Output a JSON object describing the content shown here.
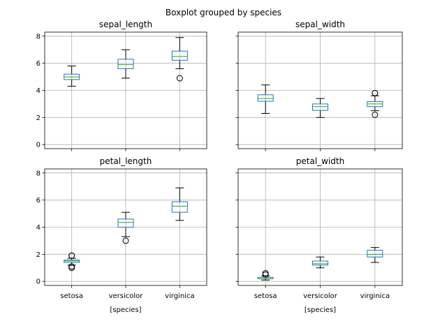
{
  "figure": {
    "suptitle": "Boxplot grouped by species"
  },
  "colors": {
    "box": "#1f77b4",
    "median": "#2ca02c",
    "whisker": "#000000",
    "grid": "#b0b0b0",
    "spine": "#000000"
  },
  "chart_data": [
    {
      "type": "box",
      "title": "sepal_length",
      "xlabel": "",
      "ylim": [
        -0.3,
        8.3
      ],
      "yticks": [
        0,
        2,
        4,
        6,
        8
      ],
      "grid": true,
      "categories": [
        "setosa",
        "versicolor",
        "virginica"
      ],
      "boxes": [
        {
          "whislo": 4.3,
          "q1": 4.8,
          "med": 5.0,
          "q3": 5.2,
          "whishi": 5.8,
          "fliers": []
        },
        {
          "whislo": 4.9,
          "q1": 5.6,
          "med": 5.9,
          "q3": 6.3,
          "whishi": 7.0,
          "fliers": []
        },
        {
          "whislo": 5.6,
          "q1": 6.225,
          "med": 6.5,
          "q3": 6.9,
          "whishi": 7.9,
          "fliers": [
            4.9
          ]
        }
      ]
    },
    {
      "type": "box",
      "title": "sepal_width",
      "xlabel": "",
      "ylim": [
        -0.3,
        8.3
      ],
      "yticks": [
        0,
        2,
        4,
        6,
        8
      ],
      "grid": true,
      "categories": [
        "setosa",
        "versicolor",
        "virginica"
      ],
      "boxes": [
        {
          "whislo": 2.3,
          "q1": 3.2,
          "med": 3.4,
          "q3": 3.675,
          "whishi": 4.4,
          "fliers": []
        },
        {
          "whislo": 2.0,
          "q1": 2.525,
          "med": 2.8,
          "q3": 3.0,
          "whishi": 3.4,
          "fliers": []
        },
        {
          "whislo": 2.5,
          "q1": 2.8,
          "med": 3.0,
          "q3": 3.175,
          "whishi": 3.6,
          "fliers": [
            3.8,
            3.8,
            2.2
          ]
        }
      ]
    },
    {
      "type": "box",
      "title": "petal_length",
      "xlabel": "[species]",
      "ylim": [
        -0.3,
        8.3
      ],
      "yticks": [
        0,
        2,
        4,
        6,
        8
      ],
      "grid": true,
      "categories": [
        "setosa",
        "versicolor",
        "virginica"
      ],
      "boxes": [
        {
          "whislo": 1.2,
          "q1": 1.4,
          "med": 1.5,
          "q3": 1.575,
          "whishi": 1.7,
          "fliers": [
            1.9,
            1.9,
            1.0,
            1.1
          ]
        },
        {
          "whislo": 3.3,
          "q1": 4.0,
          "med": 4.35,
          "q3": 4.6,
          "whishi": 5.1,
          "fliers": [
            3.0
          ]
        },
        {
          "whislo": 4.5,
          "q1": 5.1,
          "med": 5.55,
          "q3": 5.875,
          "whishi": 6.9,
          "fliers": []
        }
      ]
    },
    {
      "type": "box",
      "title": "petal_width",
      "xlabel": "[species]",
      "ylim": [
        -0.3,
        8.3
      ],
      "yticks": [
        0,
        2,
        4,
        6,
        8
      ],
      "grid": true,
      "categories": [
        "setosa",
        "versicolor",
        "virginica"
      ],
      "boxes": [
        {
          "whislo": 0.1,
          "q1": 0.2,
          "med": 0.2,
          "q3": 0.3,
          "whishi": 0.4,
          "fliers": [
            0.5,
            0.6
          ]
        },
        {
          "whislo": 1.0,
          "q1": 1.2,
          "med": 1.3,
          "q3": 1.5,
          "whishi": 1.8,
          "fliers": []
        },
        {
          "whislo": 1.4,
          "q1": 1.8,
          "med": 2.0,
          "q3": 2.3,
          "whishi": 2.5,
          "fliers": []
        }
      ]
    }
  ]
}
